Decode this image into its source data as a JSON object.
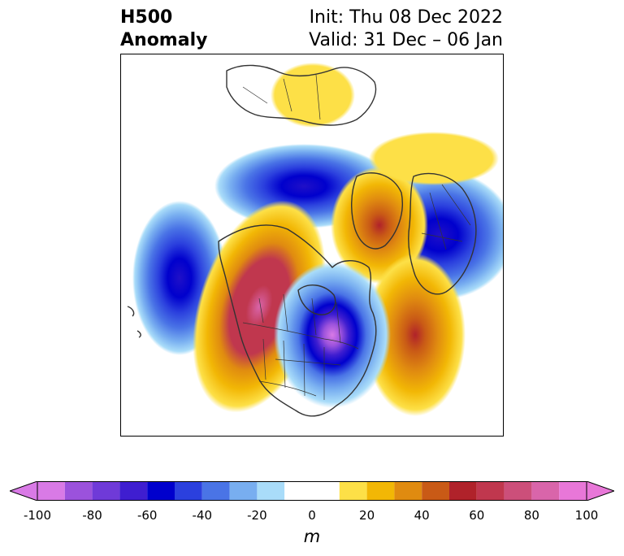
{
  "title": {
    "left_line1": "H500",
    "left_line2": "Anomaly",
    "right_line1": "Init: Thu 08 Dec 2022",
    "right_line2": "Valid: 31 Dec – 06 Jan"
  },
  "map": {
    "region": "North America and North Pacific / Atlantic",
    "features": [
      "coastlines",
      "country-borders",
      "state-province-borders"
    ],
    "anomaly_centers": [
      {
        "name": "north-pacific-low",
        "sign": "negative",
        "peak_m": -70
      },
      {
        "name": "western-north-america-ridge",
        "sign": "positive",
        "peak_m": 80
      },
      {
        "name": "hudson-bay-great-lakes-trough",
        "sign": "negative",
        "peak_m": -100
      },
      {
        "name": "alaska-arctic-low",
        "sign": "negative",
        "peak_m": -60
      },
      {
        "name": "greenland-ridge",
        "sign": "positive",
        "peak_m": 50
      },
      {
        "name": "north-atlantic-ridge",
        "sign": "positive",
        "peak_m": 60
      },
      {
        "name": "europe-siberia-low",
        "sign": "negative",
        "peak_m": -70
      },
      {
        "name": "east-asia-high",
        "sign": "positive",
        "peak_m": 20
      }
    ]
  },
  "colorbar": {
    "ticks": [
      "-100",
      "-80",
      "-60",
      "-40",
      "-20",
      "0",
      "20",
      "40",
      "60",
      "80",
      "100"
    ],
    "tick_values": [
      -100,
      -80,
      -60,
      -40,
      -20,
      0,
      20,
      40,
      60,
      80,
      100
    ],
    "levels": [
      -100,
      -90,
      -80,
      -70,
      -60,
      -50,
      -40,
      -30,
      -20,
      -10,
      10,
      20,
      30,
      40,
      50,
      60,
      70,
      80,
      90,
      100
    ],
    "colors": [
      "#d97ae6",
      "#9b52dc",
      "#6f3ad8",
      "#3f1ed0",
      "#0000cd",
      "#2b40de",
      "#4a74e6",
      "#78aef0",
      "#a9dcf9",
      "#ffffff",
      "#fde047",
      "#f2b705",
      "#e08b10",
      "#c95a16",
      "#b0222a",
      "#c0374e",
      "#cc4f7a",
      "#d965aa",
      "#e877d8"
    ],
    "under_color": "#d97ae6",
    "over_color": "#e877d8",
    "extend": "both",
    "unit": "m"
  }
}
